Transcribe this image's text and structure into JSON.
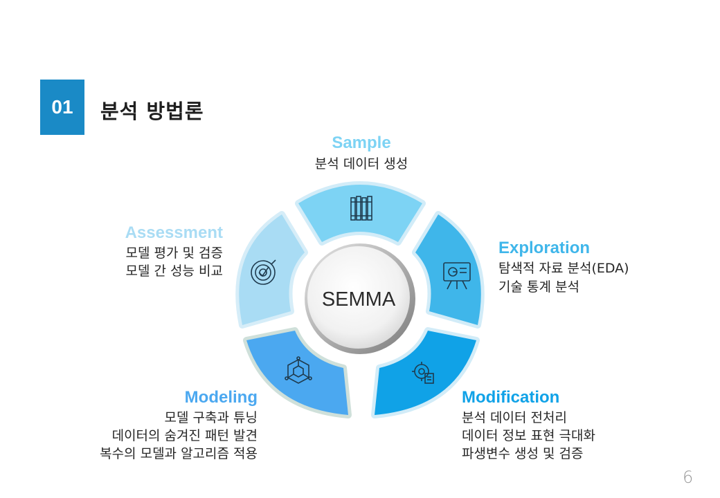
{
  "section": {
    "number": "01",
    "title": "분석 방법론"
  },
  "center_label": "SEMMA",
  "phases": [
    {
      "title": "Sample",
      "color": "#7dd3f4",
      "lines": [
        "분석 데이터 생성"
      ],
      "icon": "bookshelf-icon"
    },
    {
      "title": "Exploration",
      "color": "#3fb6ea",
      "lines": [
        "탐색적 자료 분석(EDA)",
        "기술 통계 분석"
      ],
      "icon": "presentation-chart-icon"
    },
    {
      "title": "Modification",
      "color": "#10a2e7",
      "lines": [
        "분석 데이터 전처리",
        "데이터 정보 표현 극대화",
        "파생변수 생성 및 검증"
      ],
      "icon": "gear-document-icon"
    },
    {
      "title": "Modeling",
      "color": "#4ba8f0",
      "lines": [
        "모델 구축과 튜닝",
        "데이터의 숨겨진 패턴 발견",
        "복수의 모델과 알고리즘 적용"
      ],
      "icon": "network-icon"
    },
    {
      "title": "Assessment",
      "color": "#a9dcf4",
      "lines": [
        "모델 평가 및 검증",
        "모델 간 성능 비교"
      ],
      "icon": "target-icon"
    }
  ],
  "page_number": "6"
}
